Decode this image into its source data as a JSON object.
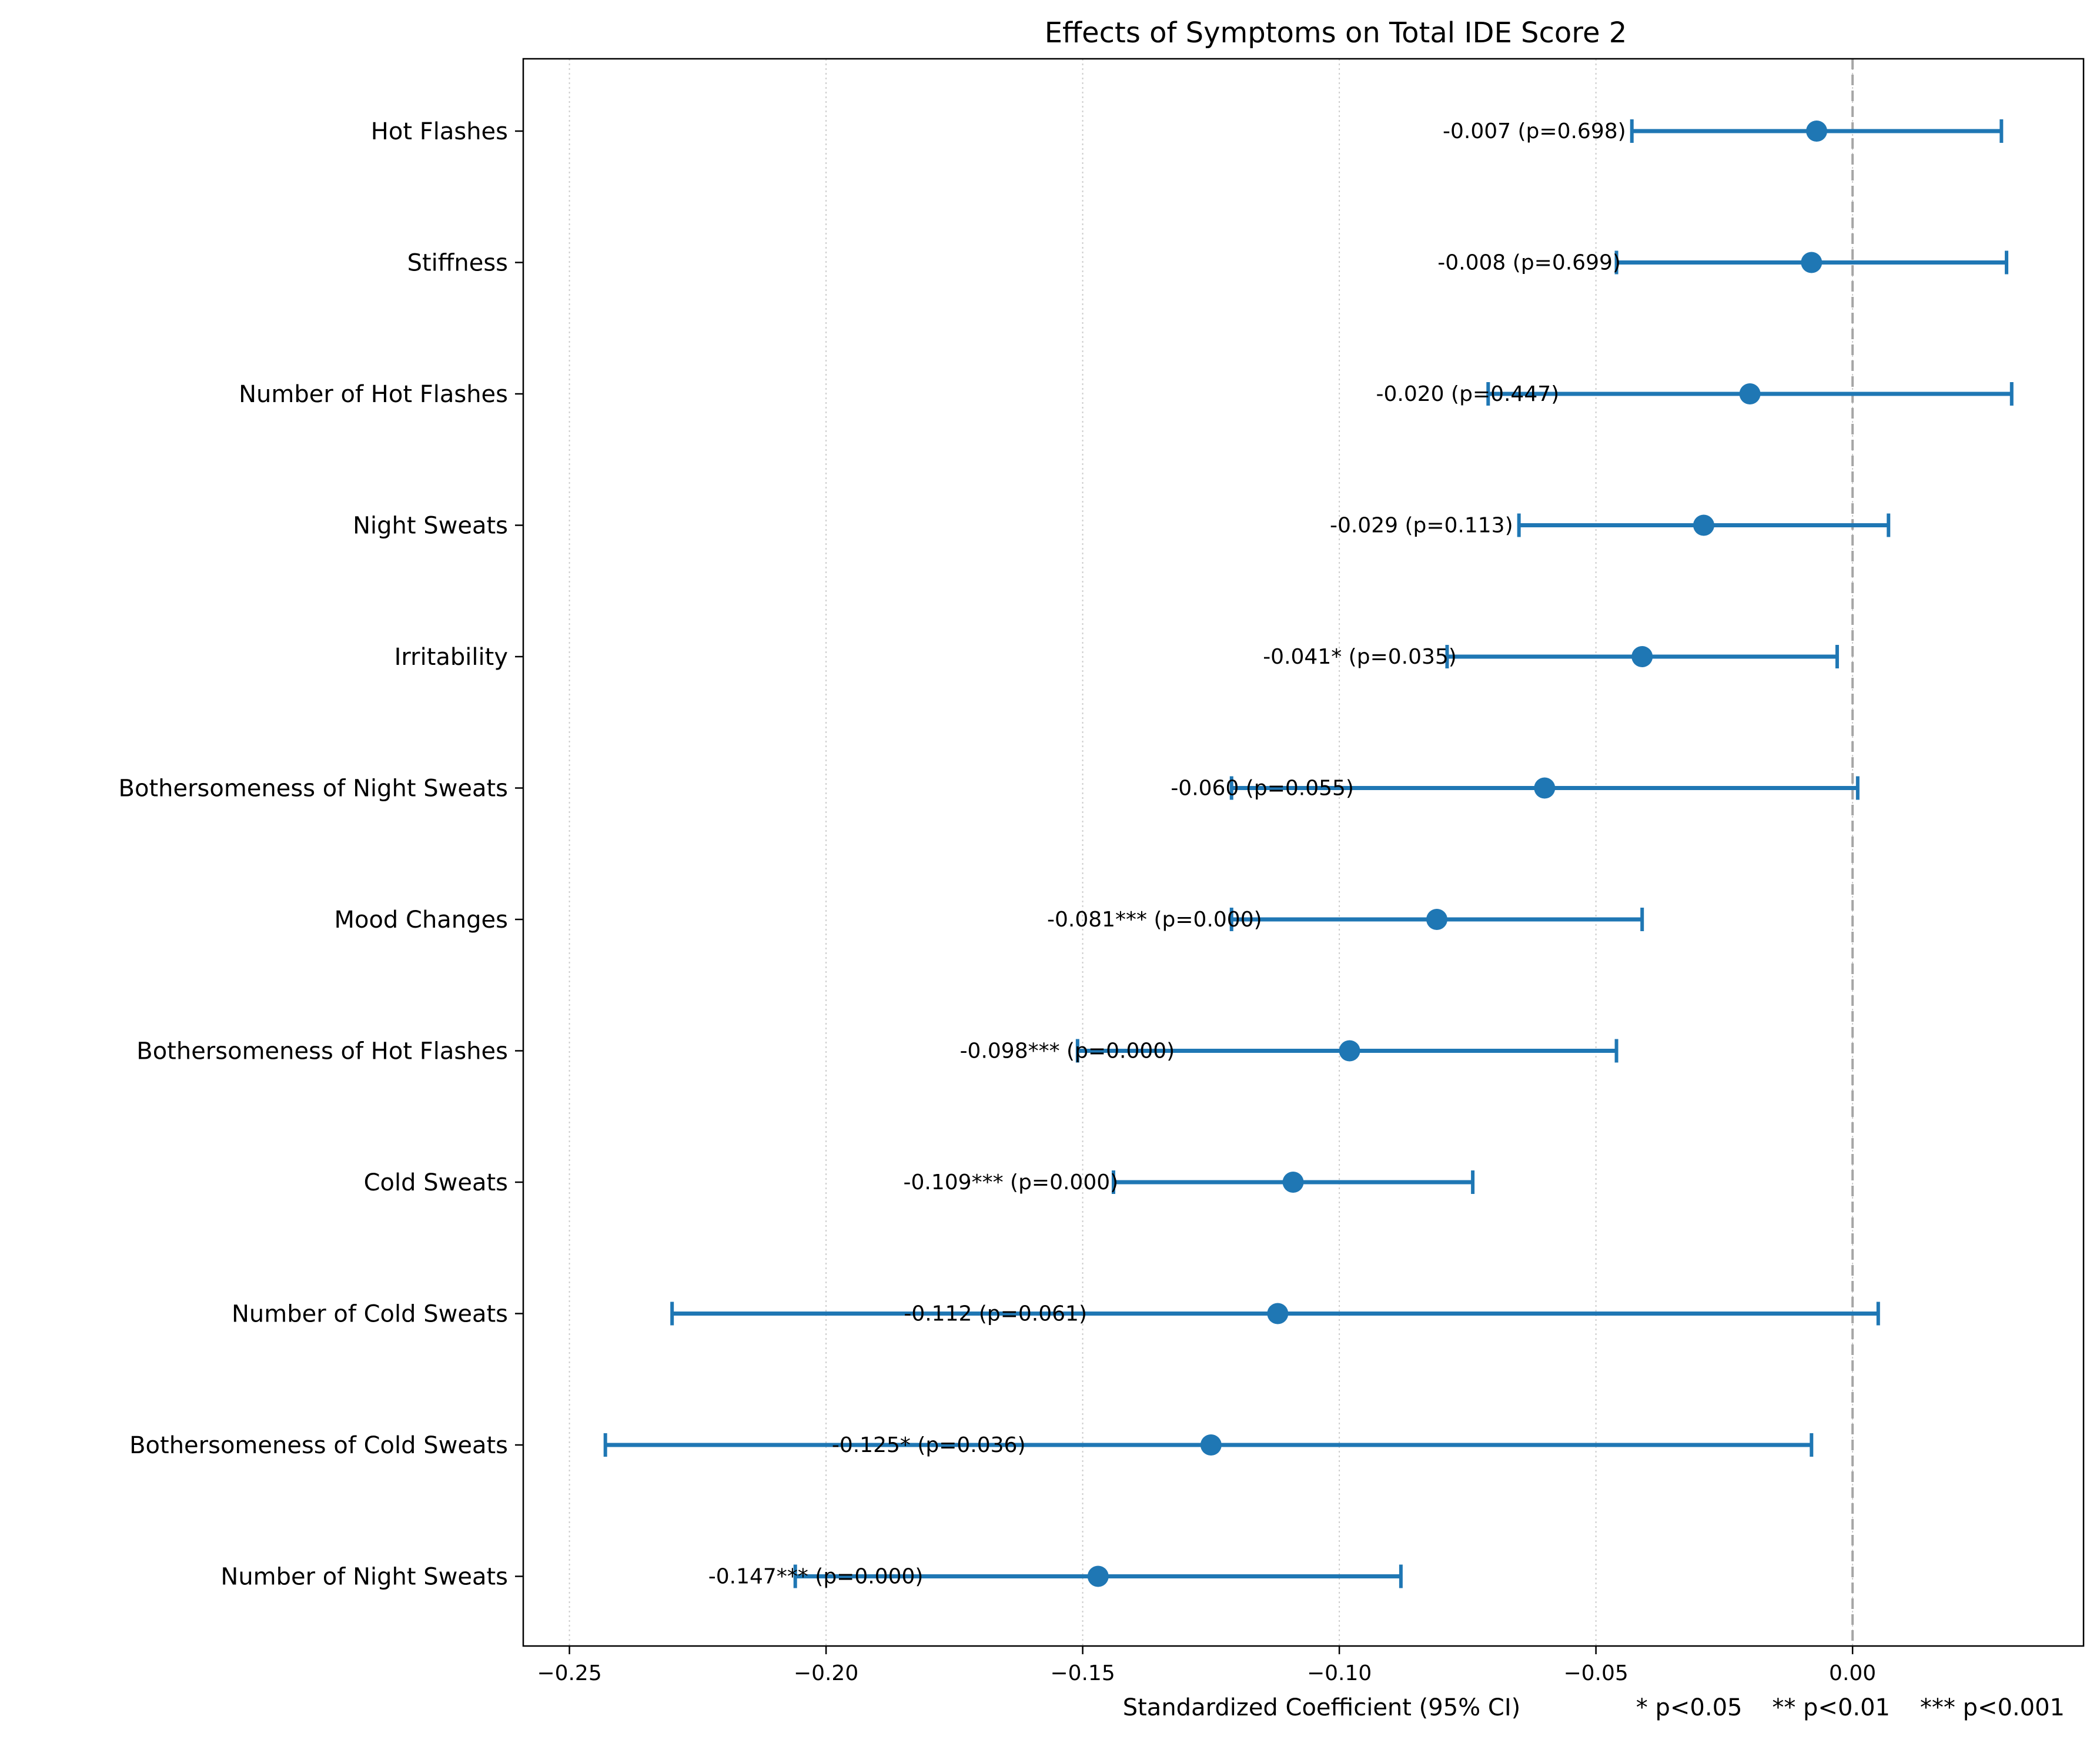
{
  "chart_data": {
    "type": "forest",
    "title": "Effects of Symptoms on Total IDE Score 2",
    "xlabel": "Standardized Coefficient (95% CI)",
    "significance_note": "* p<0.05    ** p<0.01    *** p<0.001",
    "xlim": [
      -0.259,
      0.045
    ],
    "xticks": [
      -0.25,
      -0.2,
      -0.15,
      -0.1,
      -0.05,
      0.0
    ],
    "xtick_labels": [
      "−0.25",
      "−0.20",
      "−0.15",
      "−0.10",
      "−0.05",
      "0.00"
    ],
    "reference_line": 0.0,
    "grid": "vertical dotted",
    "colors": {
      "marker": "#1f77b4",
      "reference": "#a6a6a6",
      "grid": "#cccccc"
    },
    "rows": [
      {
        "label": "Hot Flashes",
        "coef": -0.007,
        "ci_low": -0.043,
        "ci_high": 0.029,
        "annotation": "-0.007 (p=0.698)"
      },
      {
        "label": "Stiffness",
        "coef": -0.008,
        "ci_low": -0.046,
        "ci_high": 0.03,
        "annotation": "-0.008 (p=0.699)"
      },
      {
        "label": "Number of Hot Flashes",
        "coef": -0.02,
        "ci_low": -0.071,
        "ci_high": 0.031,
        "annotation": "-0.020 (p=0.447)"
      },
      {
        "label": "Night Sweats",
        "coef": -0.029,
        "ci_low": -0.065,
        "ci_high": 0.007,
        "annotation": "-0.029 (p=0.113)"
      },
      {
        "label": "Irritability",
        "coef": -0.041,
        "ci_low": -0.079,
        "ci_high": -0.003,
        "annotation": "-0.041* (p=0.035)"
      },
      {
        "label": "Bothersomeness of Night Sweats",
        "coef": -0.06,
        "ci_low": -0.121,
        "ci_high": 0.001,
        "annotation": "-0.060 (p=0.055)"
      },
      {
        "label": "Mood Changes",
        "coef": -0.081,
        "ci_low": -0.121,
        "ci_high": -0.041,
        "annotation": "-0.081*** (p=0.000)"
      },
      {
        "label": "Bothersomeness of Hot Flashes",
        "coef": -0.098,
        "ci_low": -0.151,
        "ci_high": -0.046,
        "annotation": "-0.098*** (p=0.000)"
      },
      {
        "label": "Cold Sweats",
        "coef": -0.109,
        "ci_low": -0.144,
        "ci_high": -0.074,
        "annotation": "-0.109*** (p=0.000)"
      },
      {
        "label": "Number of Cold Sweats",
        "coef": -0.112,
        "ci_low": -0.23,
        "ci_high": 0.005,
        "annotation": "-0.112 (p=0.061)"
      },
      {
        "label": "Bothersomeness of Cold Sweats",
        "coef": -0.125,
        "ci_low": -0.243,
        "ci_high": -0.008,
        "annotation": "-0.125* (p=0.036)"
      },
      {
        "label": "Number of Night Sweats",
        "coef": -0.147,
        "ci_low": -0.206,
        "ci_high": -0.088,
        "annotation": "-0.147*** (p=0.000)"
      }
    ]
  }
}
